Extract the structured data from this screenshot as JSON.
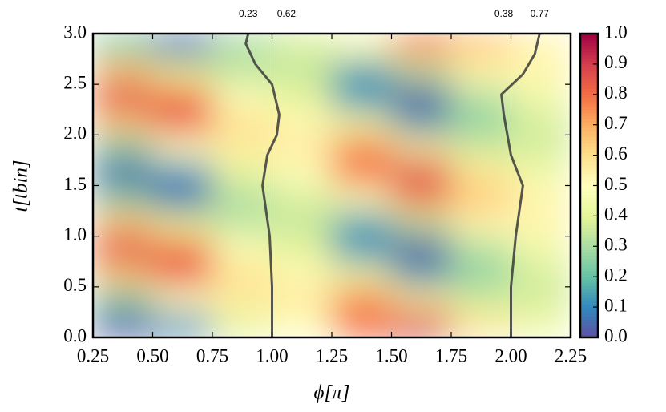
{
  "chart_data": {
    "type": "heatmap",
    "xlabel": "ϕ[π]",
    "ylabel": "t[tbin]",
    "colormap": "Spectral_r",
    "xlim": [
      0.25,
      2.25
    ],
    "ylim": [
      0,
      3
    ],
    "xticks": [
      {
        "value": 0.25,
        "label": "0.25"
      },
      {
        "value": 0.5,
        "label": "0.50"
      },
      {
        "value": 0.75,
        "label": "0.75"
      },
      {
        "value": 1,
        "label": "1.00"
      },
      {
        "value": 1.25,
        "label": "1.25"
      },
      {
        "value": 1.5,
        "label": "1.50"
      },
      {
        "value": 1.75,
        "label": "1.75"
      },
      {
        "value": 2,
        "label": "2.00"
      },
      {
        "value": 2.25,
        "label": "2.25"
      }
    ],
    "yticks": [
      {
        "value": 0,
        "label": "0.0"
      },
      {
        "value": 0.5,
        "label": "0.5"
      },
      {
        "value": 1,
        "label": "1.0"
      },
      {
        "value": 1.5,
        "label": "1.5"
      },
      {
        "value": 2,
        "label": "2.0"
      },
      {
        "value": 2.5,
        "label": "2.5"
      },
      {
        "value": 3,
        "label": "3.0"
      }
    ],
    "clim": [
      0,
      1
    ],
    "cticks": [
      {
        "value": 0,
        "label": "0.0"
      },
      {
        "value": 0.1,
        "label": "0.1"
      },
      {
        "value": 0.2,
        "label": "0.2"
      },
      {
        "value": 0.3,
        "label": "0.3"
      },
      {
        "value": 0.4,
        "label": "0.4"
      },
      {
        "value": 0.5,
        "label": "0.5"
      },
      {
        "value": 0.6,
        "label": "0.6"
      },
      {
        "value": 0.7,
        "label": "0.7"
      },
      {
        "value": 0.8,
        "label": "0.8"
      },
      {
        "value": 0.9,
        "label": "0.9"
      },
      {
        "value": 1,
        "label": "1.0"
      }
    ],
    "x_edges": [
      0.25,
      0.5,
      0.75,
      1,
      1.25,
      1.5,
      1.75,
      2,
      2.25
    ],
    "y_edges": [
      0,
      0.25,
      0.5,
      0.75,
      1,
      1.25,
      1.5,
      1.75,
      2,
      2.25,
      2.5,
      2.75,
      3
    ],
    "z": [
      [
        0.02,
        0.11,
        0.41,
        0.5,
        0.79,
        0.9,
        0.58,
        0.45
      ],
      [
        0.23,
        0.5,
        0.56,
        0.57,
        0.76,
        0.58,
        0.37,
        0.37
      ],
      [
        0.66,
        0.84,
        0.6,
        0.52,
        0.42,
        0.14,
        0.25,
        0.37
      ],
      [
        0.88,
        0.79,
        0.49,
        0.4,
        0.11,
        0.0,
        0.32,
        0.45
      ],
      [
        0.67,
        0.4,
        0.34,
        0.34,
        0.14,
        0.32,
        0.53,
        0.53
      ],
      [
        0.24,
        0.06,
        0.3,
        0.38,
        0.48,
        0.76,
        0.65,
        0.53
      ],
      [
        0.02,
        0.11,
        0.41,
        0.5,
        0.79,
        0.9,
        0.58,
        0.45
      ],
      [
        0.23,
        0.5,
        0.56,
        0.57,
        0.76,
        0.58,
        0.37,
        0.37
      ],
      [
        0.66,
        0.84,
        0.6,
        0.52,
        0.42,
        0.14,
        0.25,
        0.37
      ],
      [
        0.88,
        0.79,
        0.49,
        0.4,
        0.11,
        0.0,
        0.32,
        0.45
      ],
      [
        0.67,
        0.4,
        0.34,
        0.34,
        0.14,
        0.32,
        0.53,
        0.53
      ],
      [
        0.24,
        0.06,
        0.3,
        0.38,
        0.48,
        0.76,
        0.65,
        0.53
      ]
    ],
    "ref_lines": [
      1,
      2
    ],
    "lines": [
      {
        "color": "#3a3a3a",
        "x": [
          1.0,
          1.0,
          0.99,
          0.96,
          0.98,
          1.02,
          1.03,
          1.0,
          0.93,
          0.89,
          0.9
        ],
        "y": [
          0,
          0.5,
          1.0,
          1.5,
          1.8,
          2.0,
          2.2,
          2.5,
          2.7,
          2.9,
          3.0
        ]
      },
      {
        "color": "#3a3a3a",
        "x": [
          2.0,
          2.0,
          2.02,
          2.05,
          2.0,
          1.97,
          1.96,
          2.05,
          2.1,
          2.12
        ],
        "y": [
          0,
          0.5,
          1.0,
          1.5,
          1.8,
          2.2,
          2.4,
          2.6,
          2.8,
          3.0
        ]
      }
    ],
    "annotations": [
      {
        "text": "0.23",
        "x": 0.9
      },
      {
        "text": "0.62",
        "x": 1.06
      },
      {
        "text": "0.38",
        "x": 1.97
      },
      {
        "text": "0.77",
        "x": 2.12
      }
    ]
  }
}
